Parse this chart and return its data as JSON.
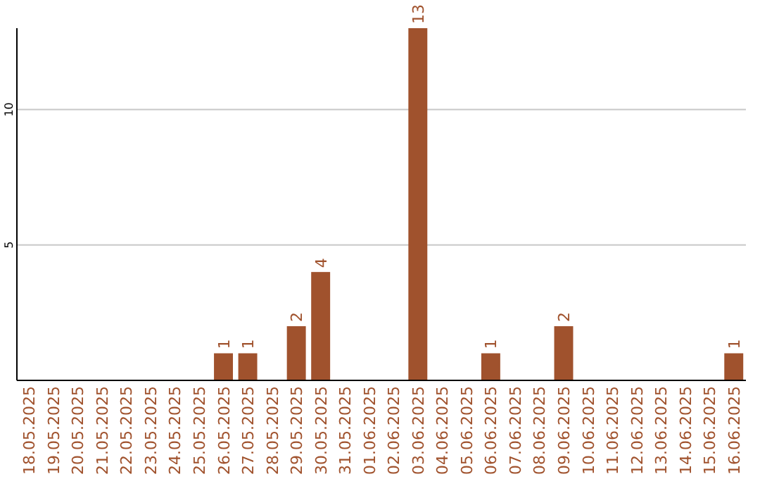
{
  "chart_data": {
    "type": "bar",
    "categories": [
      "18.05.2025",
      "19.05.2025",
      "20.05.2025",
      "21.05.2025",
      "22.05.2025",
      "23.05.2025",
      "24.05.2025",
      "25.05.2025",
      "26.05.2025",
      "27.05.2025",
      "28.05.2025",
      "29.05.2025",
      "30.05.2025",
      "31.05.2025",
      "01.06.2025",
      "02.06.2025",
      "03.06.2025",
      "04.06.2025",
      "05.06.2025",
      "06.06.2025",
      "07.06.2025",
      "08.06.2025",
      "09.06.2025",
      "10.06.2025",
      "11.06.2025",
      "12.06.2025",
      "13.06.2025",
      "14.06.2025",
      "15.06.2025",
      "16.06.2025"
    ],
    "values": [
      0,
      0,
      0,
      0,
      0,
      0,
      0,
      0,
      1,
      1,
      0,
      2,
      4,
      0,
      0,
      0,
      13,
      0,
      0,
      1,
      0,
      0,
      2,
      0,
      0,
      0,
      0,
      0,
      0,
      1
    ],
    "value_labels": [
      null,
      null,
      null,
      null,
      null,
      null,
      null,
      null,
      "1",
      "1",
      null,
      "2",
      "4",
      null,
      null,
      null,
      "13",
      null,
      null,
      "1",
      null,
      null,
      "2",
      null,
      null,
      null,
      null,
      null,
      null,
      "1"
    ],
    "color": "#a0522d",
    "ylim": [
      0,
      13
    ],
    "yticks": [
      5,
      10
    ],
    "grid": "y"
  }
}
